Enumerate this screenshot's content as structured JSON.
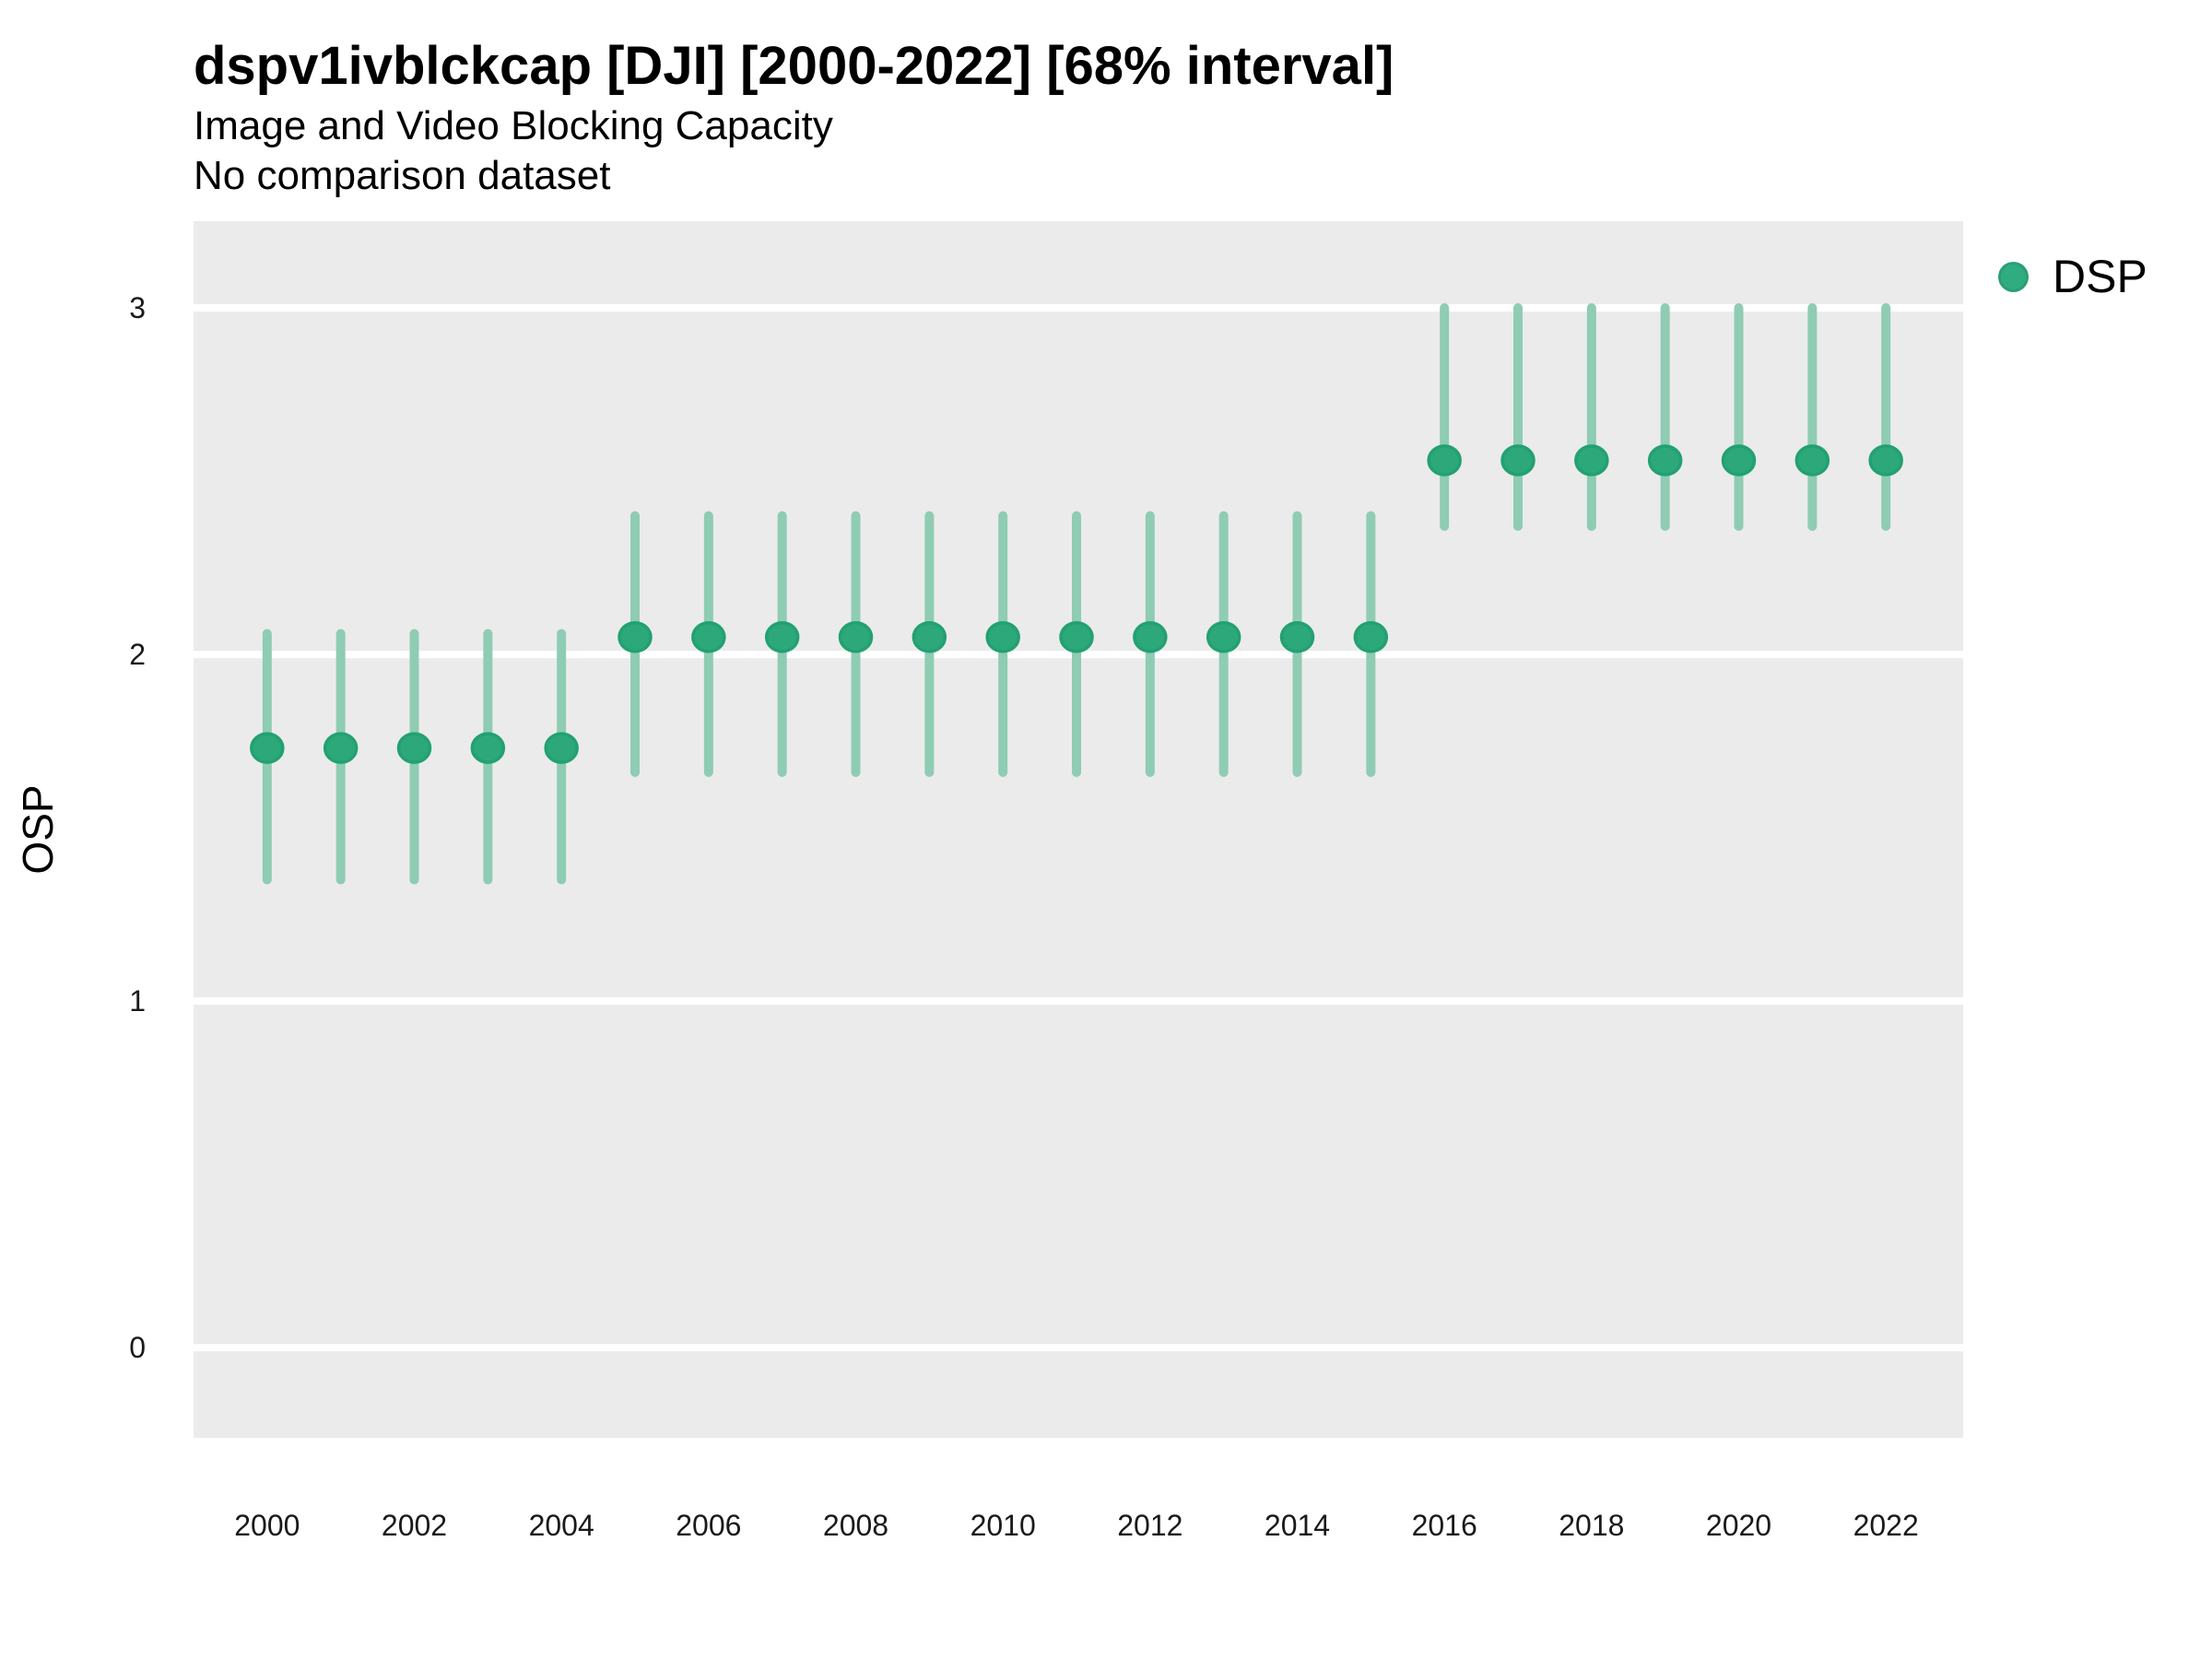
{
  "header": {
    "title": "dspv1ivblckcap [DJI] [2000-2022] [68% interval]",
    "subtitle1": "Image and Video Blocking Capacity",
    "subtitle2": "No comparison dataset"
  },
  "legend": {
    "position": "right-top",
    "items": [
      {
        "label": "DSP",
        "color": "#2fac80",
        "marker": "circle"
      }
    ]
  },
  "colors": {
    "panel_background": "#ebebeb",
    "gridline": "#ffffff",
    "range_bar": "#8fccb4",
    "point_fill": "#2da87a",
    "point_stroke": "#22a171",
    "text": "#000000",
    "tick_text": "#1a1a1a"
  },
  "chart_data": {
    "type": "scatter",
    "subtype": "pointrange-errorbar",
    "title": "dspv1ivblckcap [DJI] [2000-2022] [68% interval]",
    "subtitle": "Image and Video Blocking Capacity",
    "note": "No comparison dataset",
    "interval_label": "68% interval",
    "xlabel": "",
    "ylabel": "OSP",
    "grid": "major-horizontal-only",
    "legend_position": "right-top",
    "x": [
      2000,
      2001,
      2002,
      2003,
      2004,
      2005,
      2006,
      2007,
      2008,
      2009,
      2010,
      2011,
      2012,
      2013,
      2014,
      2015,
      2016,
      2017,
      2018,
      2019,
      2020,
      2021,
      2022
    ],
    "series": [
      {
        "name": "DSP",
        "mid": [
          1.73,
          1.73,
          1.73,
          1.73,
          1.73,
          2.05,
          2.05,
          2.05,
          2.05,
          2.05,
          2.05,
          2.05,
          2.05,
          2.05,
          2.05,
          2.05,
          2.56,
          2.56,
          2.56,
          2.56,
          2.56,
          2.56,
          2.56
        ],
        "lo": [
          1.35,
          1.35,
          1.35,
          1.35,
          1.35,
          1.66,
          1.66,
          1.66,
          1.66,
          1.66,
          1.66,
          1.66,
          1.66,
          1.66,
          1.66,
          1.66,
          2.37,
          2.37,
          2.37,
          2.37,
          2.37,
          2.37,
          2.37
        ],
        "hi": [
          2.06,
          2.06,
          2.06,
          2.06,
          2.06,
          2.4,
          2.4,
          2.4,
          2.4,
          2.4,
          2.4,
          2.4,
          2.4,
          2.4,
          2.4,
          2.4,
          3.0,
          3.0,
          3.0,
          3.0,
          3.0,
          3.0,
          3.0
        ]
      }
    ],
    "xticks": [
      2000,
      2002,
      2004,
      2006,
      2008,
      2010,
      2012,
      2014,
      2016,
      2018,
      2020,
      2022
    ],
    "yticks": [
      0,
      1,
      2,
      3
    ],
    "xlim": [
      1999,
      2023.05
    ],
    "ylim": [
      -0.26,
      3.25
    ]
  }
}
